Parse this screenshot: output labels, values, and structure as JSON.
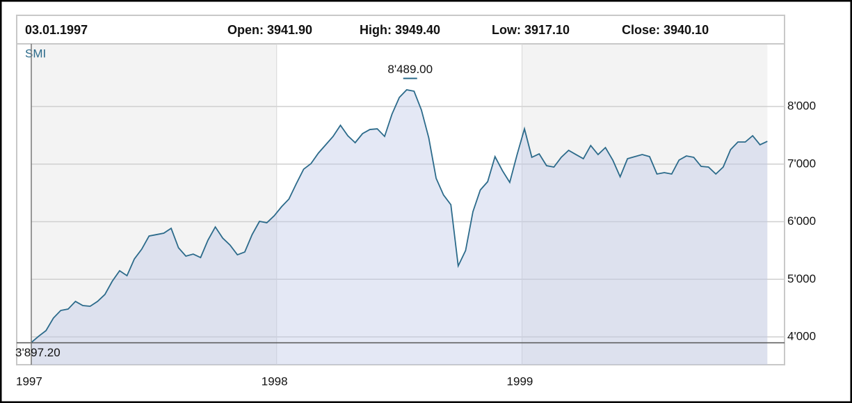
{
  "chart_data": {
    "type": "area",
    "header": {
      "date": "03.01.1997",
      "open": "Open: 3941.90",
      "high": "High: 3949.40",
      "low": "Low: 3917.10",
      "close": "Close: 3940.10"
    },
    "x": [
      1997.0,
      1997.03,
      1997.06,
      1997.09,
      1997.12,
      1997.15,
      1997.18,
      1997.21,
      1997.24,
      1997.27,
      1997.3,
      1997.33,
      1997.36,
      1997.39,
      1997.42,
      1997.45,
      1997.48,
      1997.51,
      1997.54,
      1997.57,
      1997.6,
      1997.63,
      1997.66,
      1997.69,
      1997.72,
      1997.75,
      1997.78,
      1997.81,
      1997.84,
      1997.87,
      1997.9,
      1997.93,
      1997.96,
      1997.99,
      1998.02,
      1998.05,
      1998.08,
      1998.11,
      1998.14,
      1998.17,
      1998.2,
      1998.23,
      1998.26,
      1998.29,
      1998.32,
      1998.35,
      1998.38,
      1998.41,
      1998.44,
      1998.47,
      1998.5,
      1998.53,
      1998.56,
      1998.59,
      1998.62,
      1998.65,
      1998.68,
      1998.71,
      1998.74,
      1998.77,
      1998.8,
      1998.83,
      1998.86,
      1998.89,
      1998.92,
      1998.95,
      1998.98,
      1999.01,
      1999.04,
      1999.07,
      1999.1,
      1999.13,
      1999.16,
      1999.19,
      1999.22,
      1999.25,
      1999.28,
      1999.31,
      1999.34,
      1999.37,
      1999.4,
      1999.43,
      1999.46,
      1999.49,
      1999.52,
      1999.55,
      1999.58,
      1999.61,
      1999.64,
      1999.67,
      1999.7,
      1999.73,
      1999.76,
      1999.79,
      1999.82,
      1999.85,
      1999.88,
      1999.91,
      1999.94,
      1999.97,
      2000.0
    ],
    "series": [
      {
        "name": "SMI",
        "color": "#2b6a8a",
        "values": [
          3903,
          4012,
          4109,
          4326,
          4459,
          4483,
          4616,
          4544,
          4532,
          4616,
          4737,
          4967,
          5148,
          5063,
          5353,
          5523,
          5752,
          5776,
          5801,
          5885,
          5547,
          5402,
          5438,
          5378,
          5680,
          5909,
          5716,
          5595,
          5426,
          5474,
          5776,
          6006,
          5982,
          6103,
          6260,
          6393,
          6659,
          6912,
          7009,
          7191,
          7336,
          7481,
          7674,
          7493,
          7372,
          7529,
          7601,
          7613,
          7481,
          7867,
          8157,
          8290,
          8266,
          7940,
          7456,
          6755,
          6465,
          6296,
          5233,
          5499,
          6175,
          6550,
          6695,
          7130,
          6888,
          6683,
          7166,
          7613,
          7118,
          7178,
          6973,
          6949,
          7118,
          7239,
          7166,
          7094,
          7323,
          7166,
          7287,
          7070,
          6780,
          7094,
          7130,
          7166,
          7130,
          6828,
          6852,
          6828,
          7070,
          7142,
          7118,
          6961,
          6949,
          6828,
          6949,
          7251,
          7384,
          7384,
          7493,
          7336,
          7396
        ]
      }
    ],
    "high": {
      "value": 8489,
      "label": "8'489.00"
    },
    "low": {
      "value": 3897.2,
      "label": "3'897.20"
    },
    "xlim": [
      1997,
      2000.07
    ],
    "xticks": [
      1997,
      1998,
      1999
    ],
    "ylim": [
      3517,
      9088
    ],
    "yticks": [
      {
        "value": 4000,
        "label": "4'000"
      },
      {
        "value": 5000,
        "label": "5'000"
      },
      {
        "value": 6000,
        "label": "6'000"
      },
      {
        "value": 7000,
        "label": "7'000"
      },
      {
        "value": 8000,
        "label": "8'000"
      }
    ],
    "grid": true
  }
}
